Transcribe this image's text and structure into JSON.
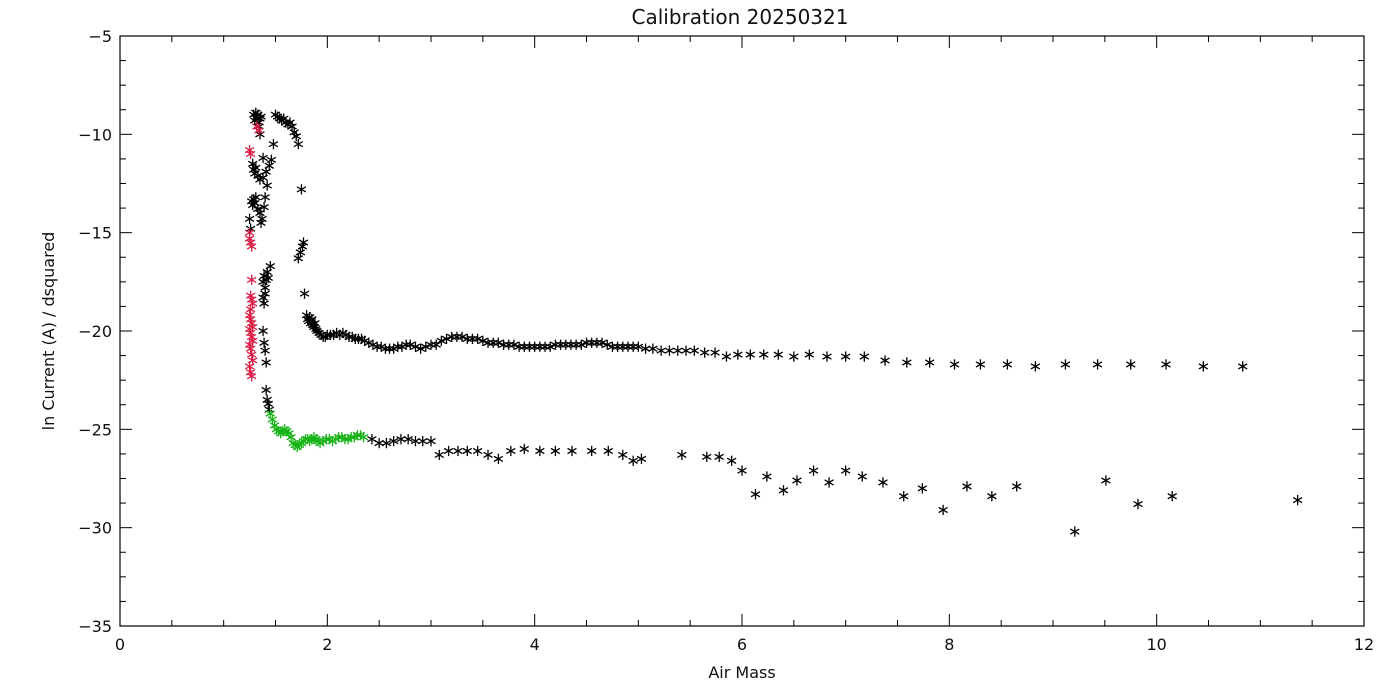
{
  "chart_data": {
    "type": "scatter",
    "title": "Calibration  20250321",
    "xlabel": "Air Mass",
    "ylabel": "ln Current (A) / dsquared",
    "xlim": [
      0,
      12
    ],
    "ylim": [
      -35,
      -5
    ],
    "x_ticks": [
      0,
      2,
      4,
      6,
      8,
      10,
      12
    ],
    "y_ticks": [
      -35,
      -30,
      -25,
      -20,
      -15,
      -10,
      -5
    ],
    "x_tick_labels": [
      "0",
      "2",
      "4",
      "6",
      "8",
      "10",
      "12"
    ],
    "y_tick_labels": [
      "−35",
      "−30",
      "−25",
      "−20",
      "−15",
      "−10",
      "−5"
    ],
    "grid": false,
    "legend": "none",
    "marker": "asterisk",
    "series": [
      {
        "color": "#000000",
        "points": [
          [
            1.29,
            -9.0
          ],
          [
            1.3,
            -9.3
          ],
          [
            1.31,
            -8.9
          ],
          [
            1.32,
            -9.2
          ],
          [
            1.33,
            -9.0
          ],
          [
            1.34,
            -9.4
          ],
          [
            1.35,
            -9.2
          ],
          [
            1.36,
            -9.1
          ],
          [
            1.28,
            -11.5
          ],
          [
            1.29,
            -11.8
          ],
          [
            1.3,
            -12.0
          ],
          [
            1.31,
            -11.7
          ],
          [
            1.33,
            -12.1
          ],
          [
            1.35,
            -12.3
          ],
          [
            1.38,
            -12.2
          ],
          [
            1.41,
            -11.9
          ],
          [
            1.44,
            -11.6
          ],
          [
            1.46,
            -11.3
          ],
          [
            1.48,
            -10.5
          ],
          [
            1.35,
            -10.0
          ],
          [
            1.34,
            -9.6
          ],
          [
            1.38,
            -11.2
          ],
          [
            1.27,
            -13.4
          ],
          [
            1.28,
            -13.6
          ],
          [
            1.29,
            -13.3
          ],
          [
            1.3,
            -13.5
          ],
          [
            1.31,
            -13.2
          ],
          [
            1.33,
            -13.8
          ],
          [
            1.35,
            -14.0
          ],
          [
            1.37,
            -14.3
          ],
          [
            1.39,
            -13.7
          ],
          [
            1.4,
            -13.2
          ],
          [
            1.42,
            -12.6
          ],
          [
            1.25,
            -14.3
          ],
          [
            1.26,
            -14.8
          ],
          [
            1.36,
            -14.5
          ],
          [
            1.38,
            -17.5
          ],
          [
            1.39,
            -17.2
          ],
          [
            1.4,
            -17.8
          ],
          [
            1.41,
            -17.4
          ],
          [
            1.42,
            -17.0
          ],
          [
            1.43,
            -17.3
          ],
          [
            1.45,
            -16.7
          ],
          [
            1.38,
            -18.3
          ],
          [
            1.39,
            -18.6
          ],
          [
            1.4,
            -18.1
          ],
          [
            1.38,
            -20.0
          ],
          [
            1.39,
            -20.6
          ],
          [
            1.4,
            -21.0
          ],
          [
            1.41,
            -21.6
          ],
          [
            1.41,
            -23.0
          ],
          [
            1.42,
            -23.5
          ],
          [
            1.43,
            -23.7
          ],
          [
            1.44,
            -24.0
          ],
          [
            1.5,
            -9.0
          ],
          [
            1.52,
            -9.1
          ],
          [
            1.54,
            -9.2
          ],
          [
            1.56,
            -9.3
          ],
          [
            1.58,
            -9.2
          ],
          [
            1.6,
            -9.4
          ],
          [
            1.62,
            -9.5
          ],
          [
            1.64,
            -9.4
          ],
          [
            1.66,
            -9.6
          ],
          [
            1.68,
            -9.9
          ],
          [
            1.7,
            -10.1
          ],
          [
            1.72,
            -10.5
          ],
          [
            1.75,
            -12.8
          ],
          [
            1.72,
            -16.3
          ],
          [
            1.74,
            -16.0
          ],
          [
            1.76,
            -15.7
          ],
          [
            1.77,
            -15.5
          ],
          [
            1.78,
            -18.1
          ],
          [
            1.8,
            -19.2
          ],
          [
            1.81,
            -19.4
          ],
          [
            1.82,
            -19.5
          ],
          [
            1.83,
            -19.3
          ],
          [
            1.84,
            -19.6
          ],
          [
            1.85,
            -19.4
          ],
          [
            1.86,
            -19.7
          ],
          [
            1.87,
            -19.8
          ],
          [
            1.88,
            -19.6
          ],
          [
            1.89,
            -19.9
          ],
          [
            1.9,
            -20.0
          ],
          [
            1.92,
            -20.1
          ],
          [
            1.94,
            -20.2
          ],
          [
            1.96,
            -20.3
          ],
          [
            1.98,
            -20.3
          ],
          [
            2.0,
            -20.2
          ],
          [
            2.03,
            -20.2
          ],
          [
            2.06,
            -20.2
          ],
          [
            2.09,
            -20.1
          ],
          [
            2.12,
            -20.2
          ],
          [
            2.15,
            -20.1
          ],
          [
            2.18,
            -20.2
          ],
          [
            2.21,
            -20.3
          ],
          [
            2.24,
            -20.3
          ],
          [
            2.27,
            -20.4
          ],
          [
            2.3,
            -20.4
          ],
          [
            2.33,
            -20.4
          ],
          [
            2.36,
            -20.5
          ],
          [
            2.4,
            -20.6
          ],
          [
            2.44,
            -20.7
          ],
          [
            2.48,
            -20.8
          ],
          [
            2.52,
            -20.8
          ],
          [
            2.56,
            -20.9
          ],
          [
            2.6,
            -20.9
          ],
          [
            2.64,
            -20.9
          ],
          [
            2.68,
            -20.8
          ],
          [
            2.72,
            -20.8
          ],
          [
            2.76,
            -20.7
          ],
          [
            2.8,
            -20.7
          ],
          [
            2.85,
            -20.8
          ],
          [
            2.9,
            -20.9
          ],
          [
            2.95,
            -20.8
          ],
          [
            3.0,
            -20.7
          ],
          [
            3.05,
            -20.7
          ],
          [
            3.1,
            -20.5
          ],
          [
            3.15,
            -20.4
          ],
          [
            3.2,
            -20.3
          ],
          [
            3.25,
            -20.3
          ],
          [
            3.3,
            -20.3
          ],
          [
            3.35,
            -20.4
          ],
          [
            3.4,
            -20.4
          ],
          [
            3.45,
            -20.4
          ],
          [
            3.5,
            -20.5
          ],
          [
            3.55,
            -20.6
          ],
          [
            3.6,
            -20.6
          ],
          [
            3.65,
            -20.6
          ],
          [
            3.7,
            -20.7
          ],
          [
            3.75,
            -20.7
          ],
          [
            3.8,
            -20.7
          ],
          [
            3.85,
            -20.8
          ],
          [
            3.9,
            -20.8
          ],
          [
            3.95,
            -20.8
          ],
          [
            4.0,
            -20.8
          ],
          [
            4.05,
            -20.8
          ],
          [
            4.1,
            -20.8
          ],
          [
            4.15,
            -20.8
          ],
          [
            4.2,
            -20.7
          ],
          [
            4.25,
            -20.7
          ],
          [
            4.3,
            -20.7
          ],
          [
            4.35,
            -20.7
          ],
          [
            4.4,
            -20.7
          ],
          [
            4.45,
            -20.7
          ],
          [
            4.5,
            -20.6
          ],
          [
            4.55,
            -20.6
          ],
          [
            4.6,
            -20.6
          ],
          [
            4.65,
            -20.6
          ],
          [
            4.7,
            -20.7
          ],
          [
            4.75,
            -20.8
          ],
          [
            4.8,
            -20.8
          ],
          [
            4.85,
            -20.8
          ],
          [
            4.9,
            -20.8
          ],
          [
            4.95,
            -20.8
          ],
          [
            5.0,
            -20.8
          ],
          [
            5.07,
            -20.9
          ],
          [
            5.14,
            -20.9
          ],
          [
            5.22,
            -21.0
          ],
          [
            5.3,
            -21.0
          ],
          [
            5.38,
            -21.0
          ],
          [
            5.46,
            -21.0
          ],
          [
            5.54,
            -21.0
          ],
          [
            5.64,
            -21.1
          ],
          [
            5.74,
            -21.1
          ],
          [
            5.85,
            -21.3
          ],
          [
            5.96,
            -21.2
          ],
          [
            6.08,
            -21.2
          ],
          [
            6.21,
            -21.2
          ],
          [
            6.35,
            -21.2
          ],
          [
            6.5,
            -21.3
          ],
          [
            6.65,
            -21.2
          ],
          [
            6.82,
            -21.3
          ],
          [
            7.0,
            -21.3
          ],
          [
            7.18,
            -21.3
          ],
          [
            7.38,
            -21.5
          ],
          [
            7.59,
            -21.6
          ],
          [
            7.81,
            -21.6
          ],
          [
            8.05,
            -21.7
          ],
          [
            8.3,
            -21.7
          ],
          [
            8.56,
            -21.7
          ],
          [
            8.83,
            -21.8
          ],
          [
            9.12,
            -21.7
          ],
          [
            9.43,
            -21.7
          ],
          [
            9.75,
            -21.7
          ],
          [
            10.09,
            -21.7
          ],
          [
            10.45,
            -21.8
          ],
          [
            10.83,
            -21.8
          ],
          [
            2.43,
            -25.5
          ],
          [
            2.5,
            -25.7
          ],
          [
            2.57,
            -25.7
          ],
          [
            2.64,
            -25.6
          ],
          [
            2.71,
            -25.5
          ],
          [
            2.78,
            -25.5
          ],
          [
            2.85,
            -25.6
          ],
          [
            2.92,
            -25.6
          ],
          [
            3.0,
            -25.6
          ],
          [
            3.08,
            -26.3
          ],
          [
            3.17,
            -26.1
          ],
          [
            3.26,
            -26.1
          ],
          [
            3.35,
            -26.1
          ],
          [
            3.45,
            -26.1
          ],
          [
            3.55,
            -26.3
          ],
          [
            3.65,
            -26.5
          ],
          [
            3.77,
            -26.1
          ],
          [
            3.9,
            -26.0
          ],
          [
            4.05,
            -26.1
          ],
          [
            4.2,
            -26.1
          ],
          [
            4.36,
            -26.1
          ],
          [
            4.55,
            -26.1
          ],
          [
            4.71,
            -26.1
          ],
          [
            4.85,
            -26.3
          ],
          [
            4.95,
            -26.6
          ],
          [
            5.03,
            -26.5
          ],
          [
            5.42,
            -26.3
          ],
          [
            5.66,
            -26.4
          ],
          [
            5.78,
            -26.4
          ],
          [
            5.9,
            -26.6
          ],
          [
            6.0,
            -27.1
          ],
          [
            6.13,
            -28.3
          ],
          [
            6.24,
            -27.4
          ],
          [
            6.4,
            -28.1
          ],
          [
            6.53,
            -27.6
          ],
          [
            6.69,
            -27.1
          ],
          [
            6.84,
            -27.7
          ],
          [
            7.0,
            -27.1
          ],
          [
            7.16,
            -27.4
          ],
          [
            7.36,
            -27.7
          ],
          [
            7.56,
            -28.4
          ],
          [
            7.74,
            -28.0
          ],
          [
            7.94,
            -29.1
          ],
          [
            8.17,
            -27.9
          ],
          [
            8.41,
            -28.4
          ],
          [
            8.65,
            -27.9
          ],
          [
            9.21,
            -30.2
          ],
          [
            9.51,
            -27.6
          ],
          [
            9.82,
            -28.8
          ],
          [
            10.15,
            -28.4
          ],
          [
            11.36,
            -28.6
          ]
        ]
      },
      {
        "color": "#dc1e46",
        "points": [
          [
            1.25,
            -10.8
          ],
          [
            1.26,
            -11.0
          ],
          [
            1.32,
            -9.6
          ],
          [
            1.34,
            -9.8
          ],
          [
            1.25,
            -15.3
          ],
          [
            1.26,
            -15.5
          ],
          [
            1.27,
            -15.7
          ],
          [
            1.25,
            -15.0
          ],
          [
            1.27,
            -17.4
          ],
          [
            1.26,
            -18.2
          ],
          [
            1.27,
            -18.4
          ],
          [
            1.28,
            -18.6
          ],
          [
            1.26,
            -18.9
          ],
          [
            1.25,
            -19.2
          ],
          [
            1.26,
            -19.4
          ],
          [
            1.27,
            -19.6
          ],
          [
            1.28,
            -19.8
          ],
          [
            1.25,
            -19.9
          ],
          [
            1.26,
            -20.1
          ],
          [
            1.27,
            -20.3
          ],
          [
            1.28,
            -20.5
          ],
          [
            1.25,
            -20.7
          ],
          [
            1.26,
            -20.9
          ],
          [
            1.27,
            -21.2
          ],
          [
            1.28,
            -21.5
          ],
          [
            1.25,
            -21.8
          ],
          [
            1.26,
            -22.1
          ],
          [
            1.27,
            -22.3
          ]
        ]
      },
      {
        "color": "#18b418",
        "points": [
          [
            1.45,
            -24.2
          ],
          [
            1.47,
            -24.5
          ],
          [
            1.49,
            -24.8
          ],
          [
            1.51,
            -25.0
          ],
          [
            1.53,
            -25.1
          ],
          [
            1.55,
            -25.2
          ],
          [
            1.57,
            -25.1
          ],
          [
            1.59,
            -25.0
          ],
          [
            1.61,
            -25.1
          ],
          [
            1.63,
            -25.2
          ],
          [
            1.65,
            -25.4
          ],
          [
            1.67,
            -25.7
          ],
          [
            1.69,
            -25.8
          ],
          [
            1.71,
            -25.9
          ],
          [
            1.73,
            -25.8
          ],
          [
            1.75,
            -25.7
          ],
          [
            1.77,
            -25.6
          ],
          [
            1.79,
            -25.5
          ],
          [
            1.81,
            -25.5
          ],
          [
            1.83,
            -25.6
          ],
          [
            1.85,
            -25.5
          ],
          [
            1.87,
            -25.4
          ],
          [
            1.89,
            -25.5
          ],
          [
            1.91,
            -25.6
          ],
          [
            1.93,
            -25.7
          ],
          [
            1.96,
            -25.6
          ],
          [
            1.99,
            -25.5
          ],
          [
            2.02,
            -25.5
          ],
          [
            2.05,
            -25.6
          ],
          [
            2.08,
            -25.5
          ],
          [
            2.11,
            -25.4
          ],
          [
            2.14,
            -25.4
          ],
          [
            2.17,
            -25.5
          ],
          [
            2.2,
            -25.5
          ],
          [
            2.23,
            -25.4
          ],
          [
            2.26,
            -25.4
          ],
          [
            2.29,
            -25.3
          ],
          [
            2.32,
            -25.3
          ],
          [
            2.35,
            -25.4
          ]
        ]
      }
    ]
  }
}
